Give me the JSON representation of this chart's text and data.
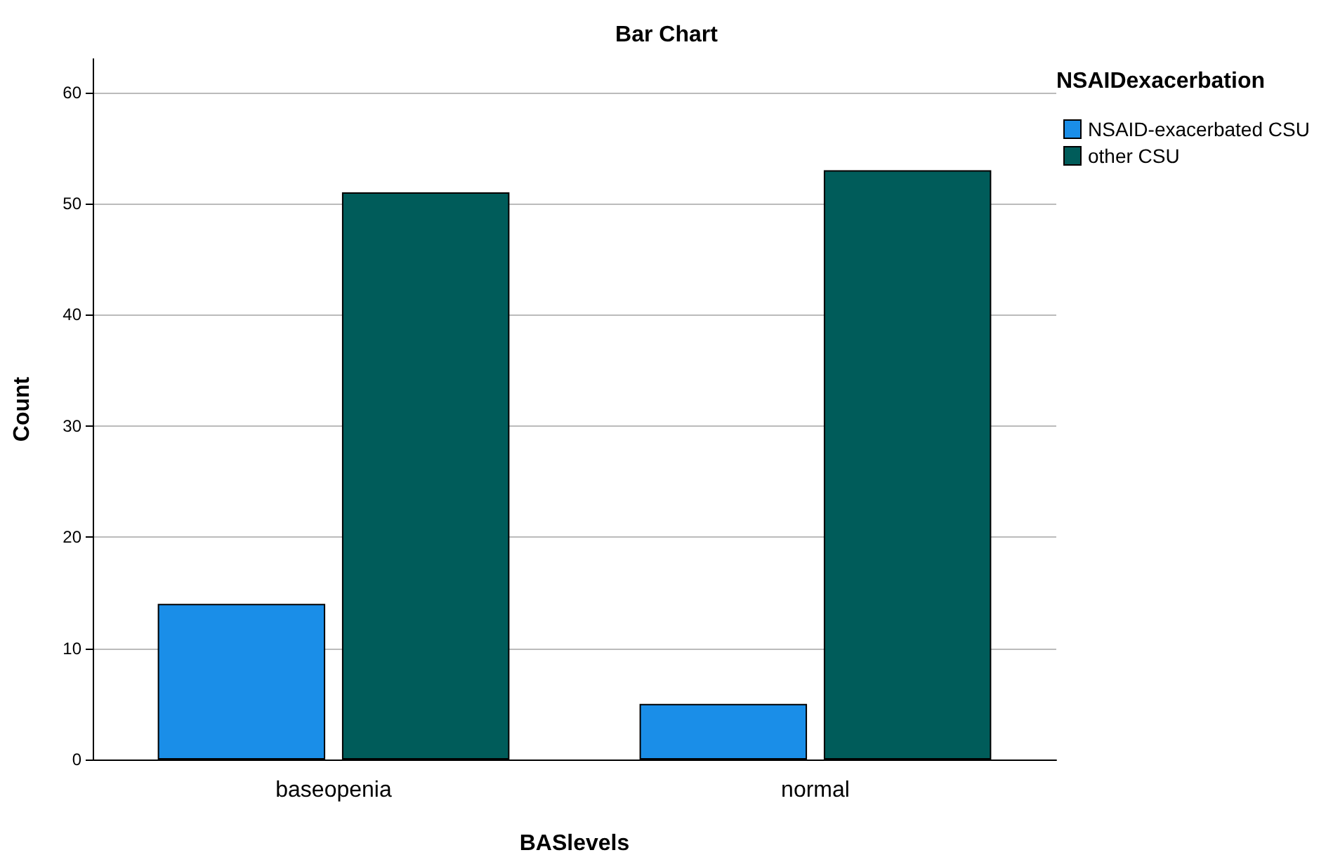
{
  "chart_data": {
    "type": "bar",
    "title": "Bar Chart",
    "xlabel": "BASlevels",
    "ylabel": "Count",
    "legend_title": "NSAIDexacerbation",
    "categories": [
      "baseopenia",
      "normal"
    ],
    "series": [
      {
        "name": "NSAID-exacerbated CSU",
        "color": "#1a8ee8",
        "values": [
          14,
          5
        ]
      },
      {
        "name": "other CSU",
        "color": "#005c5a",
        "values": [
          51,
          53
        ]
      }
    ],
    "ylim": [
      0,
      63
    ],
    "yticks": [
      0,
      10,
      20,
      30,
      40,
      50,
      60
    ],
    "grid": "y",
    "legend": "top right"
  }
}
